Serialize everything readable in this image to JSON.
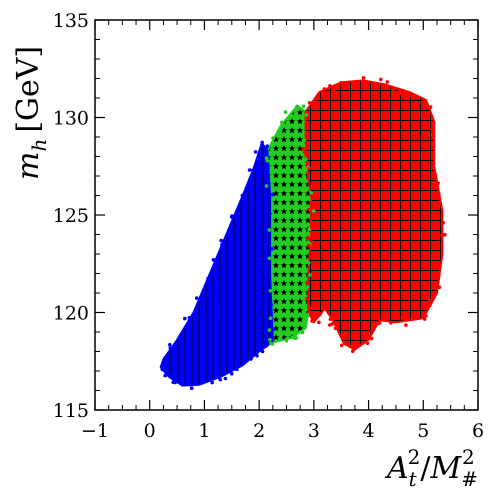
{
  "chart_data": {
    "type": "scatter",
    "xlabel": {
      "base": "A",
      "sub": "t",
      "sup": "2",
      "slash": "/",
      "base2": "M",
      "sub2": "#",
      "sup2": "2"
    },
    "ylabel": {
      "base": "m",
      "sub": "h",
      "unit": "[GeV]"
    },
    "xlim": [
      -1,
      6
    ],
    "ylim": [
      115,
      135
    ],
    "xticks": [
      "−1",
      "0",
      "1",
      "2",
      "3",
      "4",
      "5",
      "6"
    ],
    "xtick_values": [
      -1,
      0,
      1,
      2,
      3,
      4,
      5,
      6
    ],
    "yticks": [
      "115",
      "120",
      "125",
      "130",
      "135"
    ],
    "ytick_values": [
      115,
      120,
      125,
      130,
      135
    ],
    "grid": false,
    "legend": "none",
    "regions": [
      {
        "color": "#0000ff",
        "pattern": "vertical-lines",
        "boundary": [
          [
            0.2,
            117.2
          ],
          [
            0.35,
            116.7
          ],
          [
            0.6,
            116.25
          ],
          [
            0.9,
            116.3
          ],
          [
            1.3,
            116.7
          ],
          [
            1.7,
            117.3
          ],
          [
            2.0,
            118.0
          ],
          [
            2.25,
            118.5
          ],
          [
            2.2,
            122
          ],
          [
            2.2,
            126
          ],
          [
            2.15,
            128.3
          ],
          [
            2.05,
            128.7
          ],
          [
            1.9,
            127.4
          ],
          [
            1.7,
            126.0
          ],
          [
            1.4,
            124.0
          ],
          [
            1.1,
            122.0
          ],
          [
            0.8,
            120.0
          ],
          [
            0.5,
            118.6
          ],
          [
            0.25,
            117.6
          ]
        ]
      },
      {
        "color": "#22cc22",
        "pattern": "stars",
        "boundary": [
          [
            2.15,
            128.3
          ],
          [
            2.4,
            129.6
          ],
          [
            2.7,
            130.6
          ],
          [
            2.85,
            130.3
          ],
          [
            2.85,
            128
          ],
          [
            2.95,
            126
          ],
          [
            2.95,
            124
          ],
          [
            2.9,
            122
          ],
          [
            2.9,
            120
          ],
          [
            2.85,
            119.2
          ],
          [
            2.6,
            118.7
          ],
          [
            2.3,
            118.5
          ],
          [
            2.2,
            118.5
          ],
          [
            2.2,
            122
          ],
          [
            2.2,
            126
          ]
        ]
      },
      {
        "color": "#ff0000",
        "pattern": "grid",
        "boundary": [
          [
            2.85,
            130.3
          ],
          [
            3.1,
            131.3
          ],
          [
            3.5,
            131.8
          ],
          [
            3.9,
            131.9
          ],
          [
            4.3,
            131.7
          ],
          [
            4.75,
            131.3
          ],
          [
            5.05,
            130.9
          ],
          [
            5.2,
            129.8
          ],
          [
            5.2,
            127.5
          ],
          [
            5.35,
            125.2
          ],
          [
            5.35,
            123.0
          ],
          [
            5.25,
            121.0
          ],
          [
            5.0,
            119.7
          ],
          [
            4.5,
            119.5
          ],
          [
            4.2,
            119.6
          ],
          [
            4.0,
            118.6
          ],
          [
            3.75,
            118.1
          ],
          [
            3.55,
            118.4
          ],
          [
            3.35,
            119.6
          ],
          [
            3.2,
            120.2
          ],
          [
            3.0,
            119.5
          ],
          [
            2.9,
            120
          ],
          [
            2.9,
            122
          ],
          [
            2.95,
            124
          ],
          [
            2.95,
            126
          ],
          [
            2.85,
            128
          ]
        ]
      }
    ]
  }
}
